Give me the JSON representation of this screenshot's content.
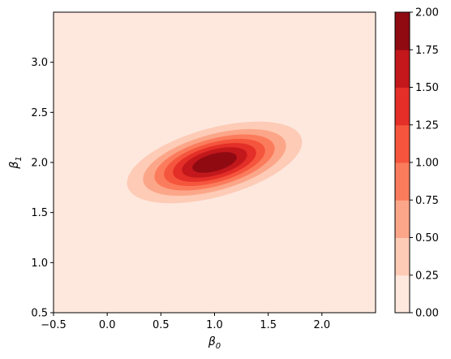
{
  "chart_data": {
    "type": "contourf",
    "title": "",
    "xlabel": "β",
    "xlabel_sub": "0",
    "ylabel": "β",
    "ylabel_sub": "1",
    "xlim": [
      -0.5,
      2.5
    ],
    "ylim": [
      0.5,
      3.5
    ],
    "x_ticks": [
      -0.5,
      0.0,
      0.5,
      1.0,
      1.5,
      2.0
    ],
    "x_tick_labels": [
      "−0.5",
      "0.0",
      "0.5",
      "1.0",
      "1.5",
      "2.0"
    ],
    "y_ticks": [
      0.5,
      1.0,
      1.5,
      2.0,
      2.5,
      3.0
    ],
    "y_tick_labels": [
      "0.5",
      "1.0",
      "1.5",
      "2.0",
      "2.5",
      "3.0"
    ],
    "density": {
      "mean": [
        1.0,
        2.0
      ],
      "sigma_x": 0.4,
      "sigma_y": 0.2,
      "correlation": 0.5,
      "peak": 2.0
    },
    "levels": [
      0.0,
      0.25,
      0.5,
      0.75,
      1.0,
      1.25,
      1.5,
      1.75,
      2.0
    ],
    "level_colors": [
      "#fee8de",
      "#fdcbb6",
      "#fca689",
      "#fb7c5c",
      "#f5553d",
      "#e32f27",
      "#c2181c",
      "#900a12"
    ],
    "colorbar": {
      "ticks": [
        0.0,
        0.25,
        0.5,
        0.75,
        1.0,
        1.25,
        1.5,
        1.75,
        2.0
      ],
      "tick_labels": [
        "0.00",
        "0.25",
        "0.50",
        "0.75",
        "1.00",
        "1.25",
        "1.50",
        "1.75",
        "2.00"
      ],
      "colormap": "Reds"
    }
  }
}
